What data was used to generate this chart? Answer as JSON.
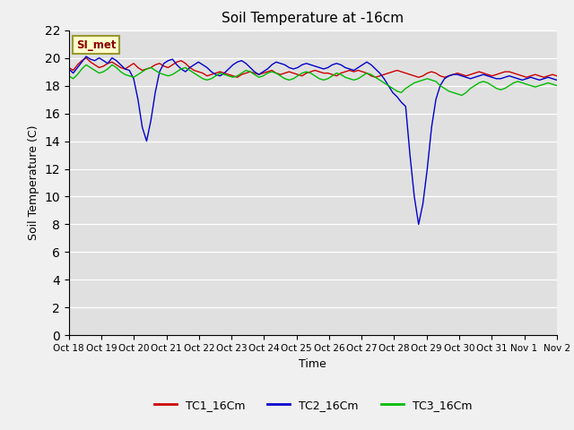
{
  "title": "Soil Temperature at -16cm",
  "xlabel": "Time",
  "ylabel": "Soil Temperature (C)",
  "ylim": [
    0,
    22
  ],
  "yticks": [
    0,
    2,
    4,
    6,
    8,
    10,
    12,
    14,
    16,
    18,
    20,
    22
  ],
  "xlabels": [
    "Oct 18",
    "Oct 19",
    "Oct 20",
    "Oct 21",
    "Oct 22",
    "Oct 23",
    "Oct 24",
    "Oct 25",
    "Oct 26",
    "Oct 27",
    "Oct 28",
    "Oct 29",
    "Oct 30",
    "Oct 31",
    "Nov 1",
    "Nov 2"
  ],
  "annotation_text": "SI_met",
  "tc1_color": "#cc0000",
  "tc2_color": "#0000cc",
  "tc3_color": "#00bb00",
  "legend_tc1": "TC1_16Cm",
  "legend_tc2": "TC2_16Cm",
  "legend_tc3": "TC3_16Cm",
  "tc1": [
    19.3,
    19.1,
    19.5,
    19.8,
    20.0,
    19.7,
    19.5,
    19.3,
    19.4,
    19.6,
    19.7,
    19.5,
    19.3,
    19.2,
    19.4,
    19.6,
    19.3,
    19.1,
    19.2,
    19.3,
    19.5,
    19.6,
    19.4,
    19.3,
    19.5,
    19.7,
    19.8,
    19.6,
    19.3,
    19.1,
    19.0,
    18.9,
    18.7,
    18.8,
    18.9,
    19.0,
    18.9,
    18.8,
    18.7,
    18.6,
    18.8,
    18.9,
    19.0,
    18.9,
    18.8,
    18.9,
    19.0,
    19.1,
    18.9,
    18.8,
    18.9,
    19.0,
    18.9,
    18.8,
    18.7,
    18.9,
    19.0,
    19.1,
    19.0,
    18.9,
    18.9,
    18.8,
    18.7,
    18.9,
    19.0,
    19.1,
    19.0,
    19.1,
    19.0,
    18.9,
    18.7,
    18.6,
    18.7,
    18.8,
    18.9,
    19.0,
    19.1,
    19.0,
    18.9,
    18.8,
    18.7,
    18.6,
    18.7,
    18.9,
    19.0,
    18.9,
    18.7,
    18.6,
    18.7,
    18.8,
    18.9,
    18.8,
    18.7,
    18.8,
    18.9,
    19.0,
    18.9,
    18.8,
    18.7,
    18.8,
    18.9,
    19.0,
    19.0,
    18.9,
    18.8,
    18.7,
    18.6,
    18.7,
    18.8,
    18.7,
    18.6,
    18.7,
    18.8,
    18.7
  ],
  "tc2": [
    19.2,
    18.9,
    19.3,
    19.7,
    20.1,
    19.9,
    19.8,
    20.0,
    19.8,
    19.6,
    20.0,
    19.8,
    19.5,
    19.2,
    19.1,
    18.5,
    17.0,
    15.0,
    14.0,
    15.5,
    17.5,
    19.0,
    19.6,
    19.8,
    19.9,
    19.5,
    19.2,
    19.0,
    19.3,
    19.5,
    19.7,
    19.5,
    19.3,
    19.0,
    18.8,
    18.7,
    18.9,
    19.2,
    19.5,
    19.7,
    19.8,
    19.6,
    19.3,
    19.0,
    18.8,
    19.0,
    19.2,
    19.5,
    19.7,
    19.6,
    19.5,
    19.3,
    19.2,
    19.3,
    19.5,
    19.6,
    19.5,
    19.4,
    19.3,
    19.2,
    19.3,
    19.5,
    19.6,
    19.5,
    19.3,
    19.2,
    19.1,
    19.3,
    19.5,
    19.7,
    19.5,
    19.2,
    18.9,
    18.5,
    18.0,
    17.5,
    17.2,
    16.8,
    16.5,
    13.0,
    10.0,
    8.0,
    9.5,
    12.0,
    15.0,
    17.0,
    18.0,
    18.5,
    18.7,
    18.8,
    18.8,
    18.7,
    18.6,
    18.5,
    18.6,
    18.7,
    18.8,
    18.7,
    18.6,
    18.5,
    18.5,
    18.6,
    18.7,
    18.6,
    18.5,
    18.4,
    18.5,
    18.6,
    18.5,
    18.4,
    18.5,
    18.6,
    18.5,
    18.4
  ],
  "tc3": [
    18.7,
    18.5,
    18.8,
    19.2,
    19.5,
    19.3,
    19.1,
    18.9,
    19.0,
    19.2,
    19.5,
    19.3,
    19.0,
    18.8,
    18.7,
    18.6,
    18.8,
    19.0,
    19.2,
    19.3,
    19.1,
    18.9,
    18.8,
    18.7,
    18.8,
    19.0,
    19.2,
    19.3,
    19.1,
    18.9,
    18.7,
    18.5,
    18.4,
    18.5,
    18.7,
    18.9,
    18.8,
    18.7,
    18.6,
    18.7,
    18.9,
    19.1,
    19.0,
    18.8,
    18.6,
    18.7,
    18.9,
    19.0,
    18.9,
    18.7,
    18.5,
    18.4,
    18.5,
    18.7,
    18.9,
    19.0,
    18.9,
    18.7,
    18.5,
    18.4,
    18.5,
    18.7,
    18.9,
    18.8,
    18.6,
    18.5,
    18.4,
    18.5,
    18.7,
    18.9,
    18.8,
    18.6,
    18.4,
    18.2,
    18.0,
    17.8,
    17.6,
    17.5,
    17.8,
    18.0,
    18.2,
    18.3,
    18.4,
    18.5,
    18.4,
    18.3,
    18.0,
    17.8,
    17.6,
    17.5,
    17.4,
    17.3,
    17.5,
    17.8,
    18.0,
    18.2,
    18.3,
    18.2,
    18.0,
    17.8,
    17.7,
    17.8,
    18.0,
    18.2,
    18.3,
    18.2,
    18.1,
    18.0,
    17.9,
    18.0,
    18.1,
    18.2,
    18.1,
    18.0
  ]
}
